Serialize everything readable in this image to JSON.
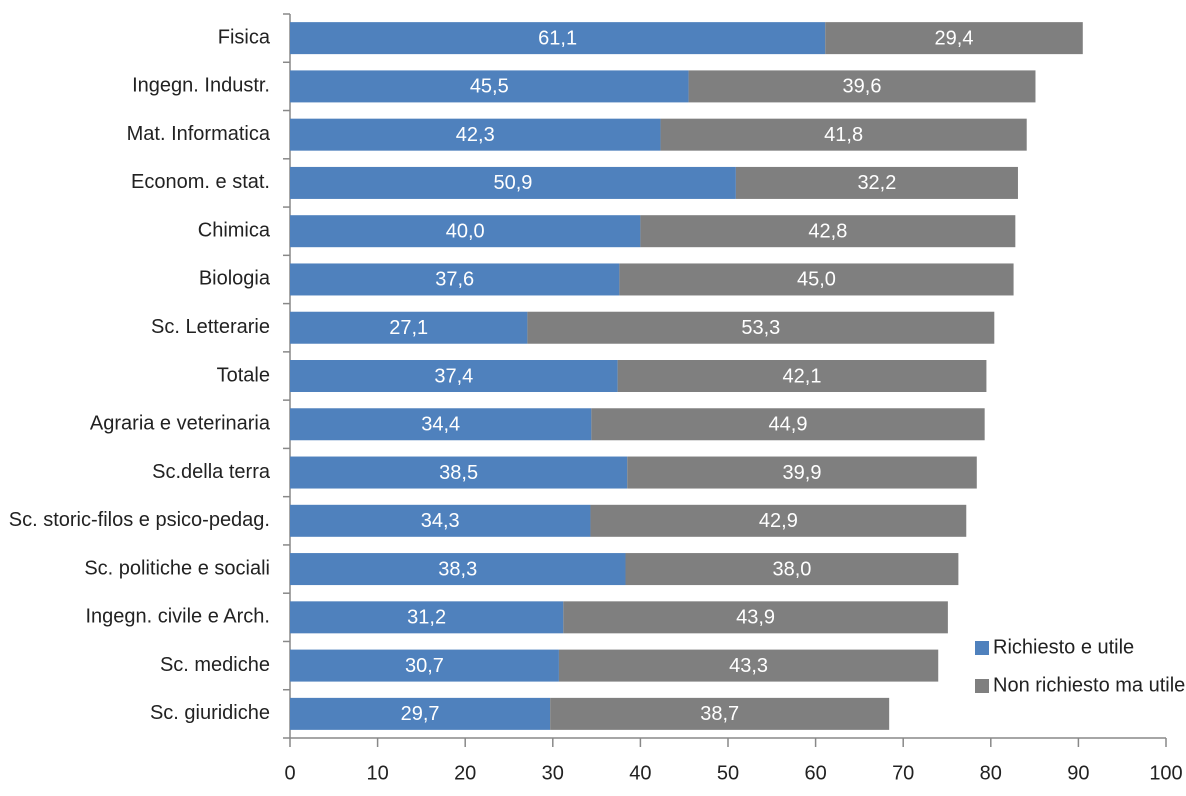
{
  "chart_data": {
    "type": "bar",
    "orientation": "horizontal",
    "stacked": true,
    "categories": [
      "Fisica",
      "Ingegn. Industr.",
      "Mat. Informatica",
      "Econom. e stat.",
      "Chimica",
      "Biologia",
      "Sc. Letterarie",
      "Totale",
      "Agraria e veterinaria",
      "Sc.della terra",
      "Sc. storic-filos e psico-pedag.",
      "Sc. politiche e sociali",
      "Ingegn. civile e Arch.",
      "Sc. mediche",
      "Sc. giuridiche"
    ],
    "series": [
      {
        "name": "Richiesto e utile",
        "color": "#4f81bd",
        "values": [
          61.1,
          45.5,
          42.3,
          50.9,
          40.0,
          37.6,
          27.1,
          37.4,
          34.4,
          38.5,
          34.3,
          38.3,
          31.2,
          30.7,
          29.7
        ],
        "value_labels": [
          "61,1",
          "45,5",
          "42,3",
          "50,9",
          "40,0",
          "37,6",
          "27,1",
          "37,4",
          "34,4",
          "38,5",
          "34,3",
          "38,3",
          "31,2",
          "30,7",
          "29,7"
        ]
      },
      {
        "name": "Non richiesto ma utile",
        "color": "#7f7f7f",
        "values": [
          29.4,
          39.6,
          41.8,
          32.2,
          42.8,
          45.0,
          53.3,
          42.1,
          44.9,
          39.9,
          42.9,
          38.0,
          43.9,
          43.3,
          38.7
        ],
        "value_labels": [
          "29,4",
          "39,6",
          "41,8",
          "32,2",
          "42,8",
          "45,0",
          "53,3",
          "42,1",
          "44,9",
          "39,9",
          "42,9",
          "38,0",
          "43,9",
          "43,3",
          "38,7"
        ]
      }
    ],
    "xlim": [
      0,
      100
    ],
    "xticks": [
      0,
      10,
      20,
      30,
      40,
      50,
      60,
      70,
      80,
      90,
      100
    ],
    "legend": "lower right"
  }
}
